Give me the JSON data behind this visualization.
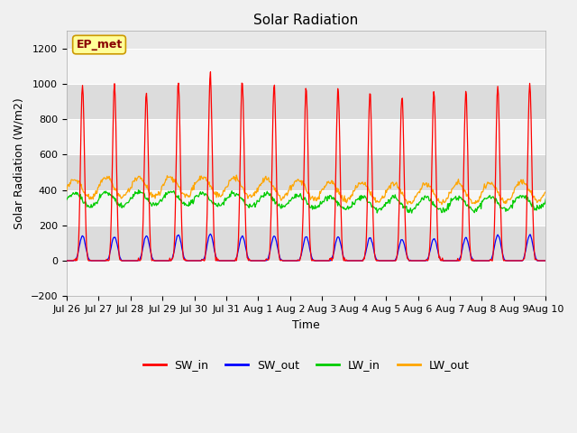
{
  "title": "Solar Radiation",
  "xlabel": "Time",
  "ylabel": "Solar Radiation (W/m2)",
  "ylim": [
    -200,
    1300
  ],
  "yticks": [
    -200,
    0,
    200,
    400,
    600,
    800,
    1000,
    1200
  ],
  "x_labels": [
    "Jul 26",
    "Jul 27",
    "Jul 28",
    "Jul 29",
    "Jul 30",
    "Jul 31",
    "Aug 1",
    "Aug 2",
    "Aug 3",
    "Aug 4",
    "Aug 5",
    "Aug 6",
    "Aug 7",
    "Aug 8",
    "Aug 9",
    "Aug 10"
  ],
  "n_days": 15,
  "points_per_day": 48,
  "SW_in_peaks": [
    1000,
    1000,
    960,
    1015,
    1055,
    1010,
    1000,
    980,
    980,
    950,
    940,
    960,
    960,
    990,
    1010
  ],
  "SW_out_peaks": [
    140,
    135,
    140,
    145,
    150,
    140,
    140,
    135,
    135,
    130,
    120,
    125,
    130,
    145,
    145
  ],
  "LW_in_base": 335,
  "LW_out_base": 400,
  "background_color": "#f0f0f0",
  "plot_bg_color": "#e8e8e8",
  "band_color_light": "#f5f5f5",
  "band_color_dark": "#dcdcdc",
  "SW_in_color": "#ff0000",
  "SW_out_color": "#0000ff",
  "LW_in_color": "#00cc00",
  "LW_out_color": "#ffa500",
  "annotation_text": "EP_met",
  "annotation_bg": "#ffff99",
  "annotation_border": "#cc9900",
  "title_fontsize": 11,
  "axis_label_fontsize": 9,
  "tick_fontsize": 8,
  "legend_fontsize": 9
}
